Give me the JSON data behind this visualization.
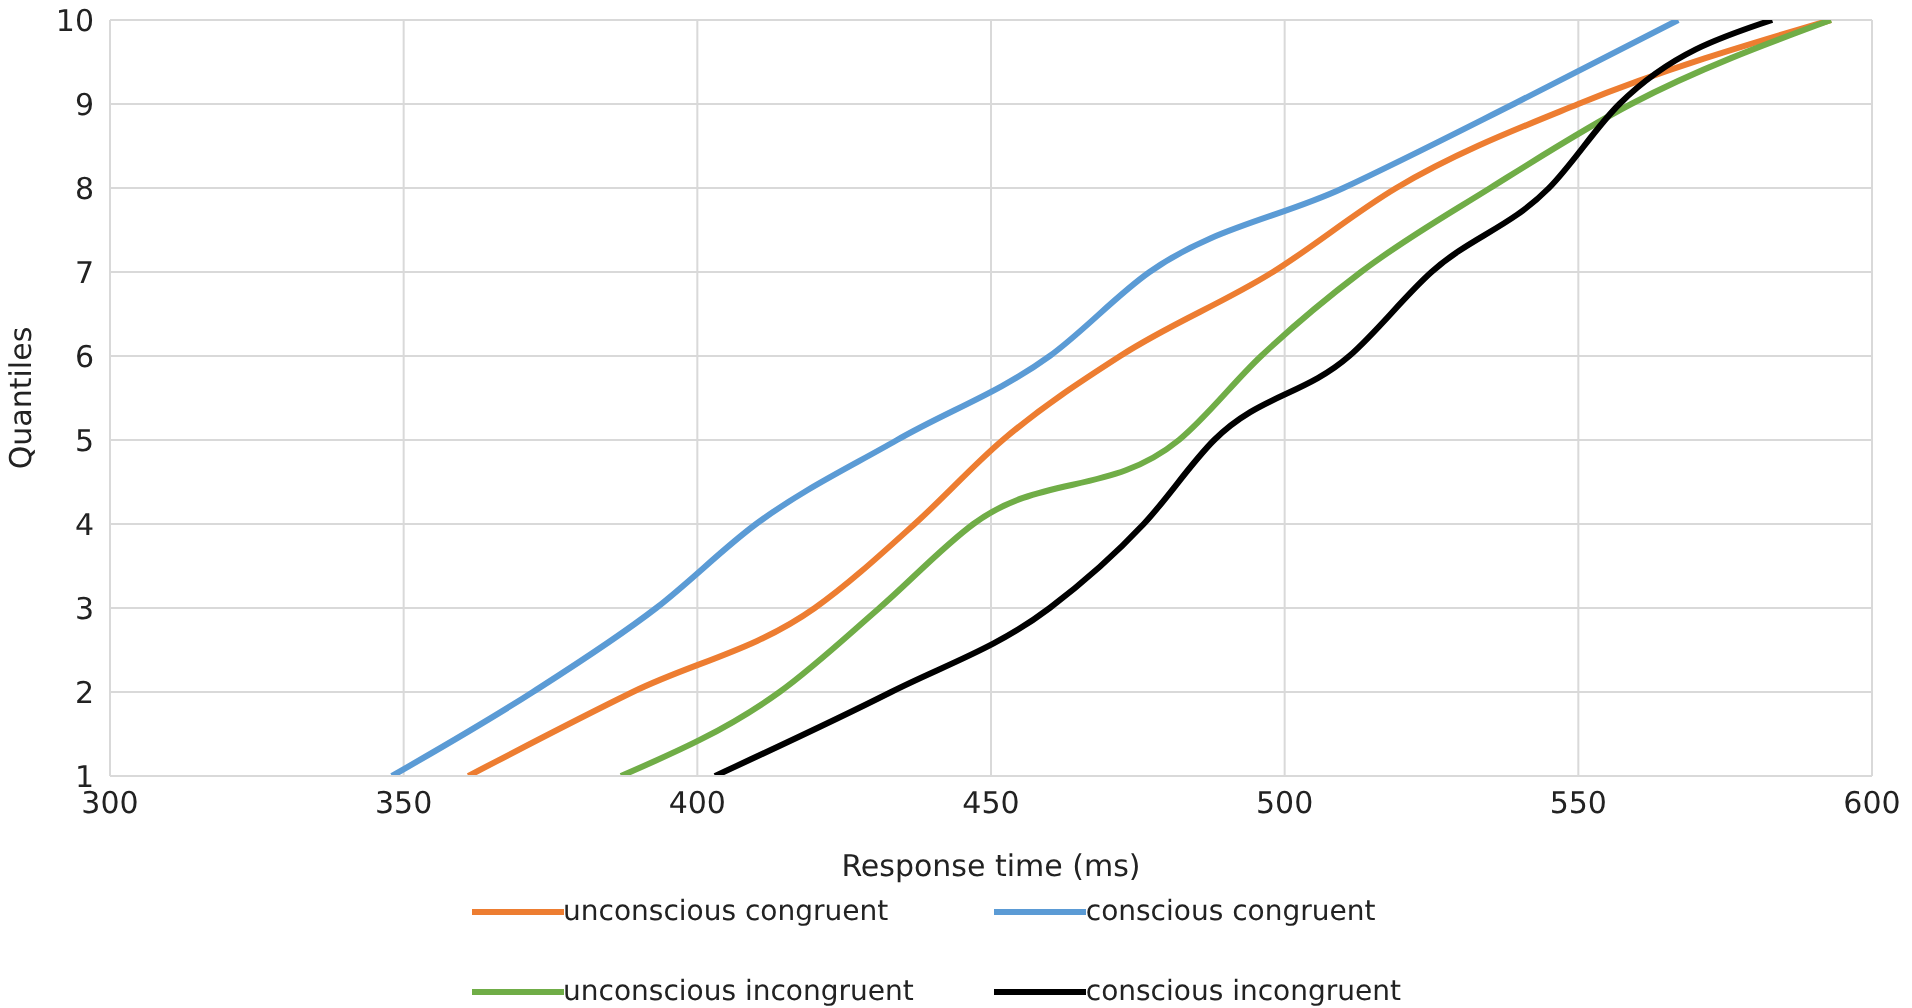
{
  "chart_data": {
    "type": "line",
    "xlabel": "Response time (ms)",
    "ylabel": "Quantiles",
    "xlim": [
      300,
      600
    ],
    "xticks": [
      300,
      350,
      400,
      450,
      500,
      550,
      600
    ],
    "ylim": [
      1,
      10
    ],
    "yticks": [
      1,
      2,
      3,
      4,
      5,
      6,
      7,
      8,
      9,
      10
    ],
    "grid": true,
    "legend": "bottom",
    "marker": "none",
    "line_style": "solid",
    "series": [
      {
        "name": "unconscious congruent",
        "color": "#ed7d31",
        "x": [
          361,
          389,
          420,
          437,
          452,
          472,
          498,
          519,
          550,
          593
        ],
        "values": [
          1,
          2,
          3,
          4,
          5,
          6,
          7,
          8,
          9,
          10
        ]
      },
      {
        "name": "conscious congruent",
        "color": "#5b9bd5",
        "x": [
          348,
          372,
          393,
          410,
          434,
          460,
          477,
          510,
          539,
          567
        ],
        "values": [
          1,
          2,
          3,
          4,
          5,
          6,
          7,
          8,
          9,
          10
        ]
      },
      {
        "name": "unconscious incongruent",
        "color": "#70ad47",
        "x": [
          387,
          414,
          431,
          447,
          482,
          496,
          513,
          535,
          559,
          593
        ],
        "values": [
          1,
          2,
          3,
          4,
          5,
          6,
          7,
          8,
          9,
          10
        ]
      },
      {
        "name": "conscious incongruent",
        "color": "#000000",
        "x": [
          403,
          433,
          460,
          476,
          488,
          511,
          525,
          545,
          557,
          583
        ],
        "values": [
          1,
          2,
          3,
          4,
          5,
          6,
          7,
          8,
          9,
          10
        ]
      }
    ]
  }
}
